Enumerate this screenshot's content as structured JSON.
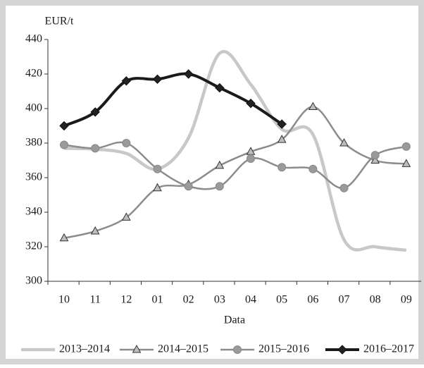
{
  "chart_data": {
    "type": "line",
    "y_label": "EUR/t",
    "x_label": "Data",
    "categories": [
      "10",
      "11",
      "12",
      "01",
      "02",
      "03",
      "04",
      "05",
      "06",
      "07",
      "08",
      "09"
    ],
    "ylim": [
      300,
      440
    ],
    "yticks": [
      300,
      320,
      340,
      360,
      380,
      400,
      420,
      440
    ],
    "grid": false,
    "legend": "bottom",
    "series": [
      {
        "name": "2013–2014",
        "color": "#c8c8c8",
        "marker": "none",
        "values": [
          377,
          376.5,
          374,
          365,
          383,
          432,
          414,
          388,
          385,
          324,
          320,
          318
        ]
      },
      {
        "name": "2014–2015",
        "color": "#8c8c8c",
        "marker": "triangle",
        "values": [
          325,
          329,
          337,
          354,
          356,
          367,
          375,
          382,
          401,
          380,
          370,
          368
        ]
      },
      {
        "name": "2015–2016",
        "color": "#8c8c8c",
        "marker": "circle",
        "values": [
          379,
          377,
          380,
          365,
          355,
          355,
          371,
          366,
          365,
          354,
          373,
          378
        ]
      },
      {
        "name": "2016–2017",
        "color": "#1a1a1a",
        "marker": "diamond",
        "values": [
          390,
          398,
          416,
          417,
          420,
          412,
          403,
          391,
          null,
          null,
          null,
          null
        ]
      }
    ]
  }
}
